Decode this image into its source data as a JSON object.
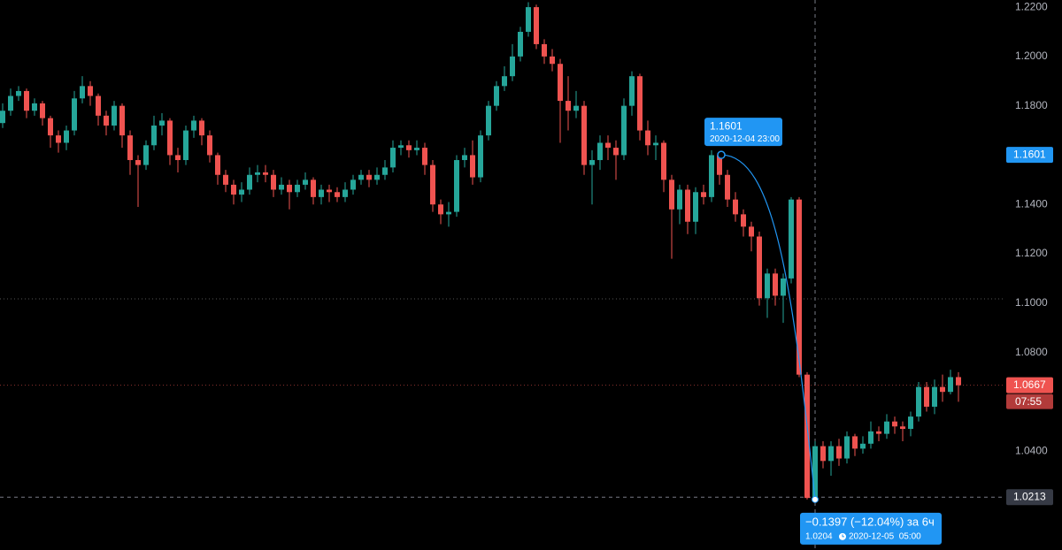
{
  "chart_data": {
    "type": "candlestick",
    "up_color": "#26a69a",
    "down_color": "#ef5350",
    "ohlc": [
      [
        1.173,
        1.181,
        1.171,
        1.178
      ],
      [
        1.178,
        1.187,
        1.176,
        1.184
      ],
      [
        1.184,
        1.188,
        1.182,
        1.186
      ],
      [
        1.186,
        1.187,
        1.175,
        1.178
      ],
      [
        1.178,
        1.183,
        1.176,
        1.181
      ],
      [
        1.181,
        1.182,
        1.172,
        1.175
      ],
      [
        1.175,
        1.176,
        1.163,
        1.168
      ],
      [
        1.168,
        1.17,
        1.161,
        1.165
      ],
      [
        1.165,
        1.172,
        1.162,
        1.17
      ],
      [
        1.17,
        1.186,
        1.168,
        1.183
      ],
      [
        1.183,
        1.192,
        1.181,
        1.188
      ],
      [
        1.188,
        1.19,
        1.18,
        1.184
      ],
      [
        1.184,
        1.185,
        1.172,
        1.176
      ],
      [
        1.176,
        1.178,
        1.168,
        1.172
      ],
      [
        1.172,
        1.182,
        1.17,
        1.18
      ],
      [
        1.18,
        1.181,
        1.163,
        1.168
      ],
      [
        1.168,
        1.17,
        1.152,
        1.158
      ],
      [
        1.158,
        1.16,
        1.139,
        1.156
      ],
      [
        1.156,
        1.166,
        1.154,
        1.164
      ],
      [
        1.164,
        1.176,
        1.162,
        1.172
      ],
      [
        1.172,
        1.177,
        1.168,
        1.174
      ],
      [
        1.174,
        1.175,
        1.156,
        1.16
      ],
      [
        1.16,
        1.163,
        1.153,
        1.158
      ],
      [
        1.158,
        1.172,
        1.156,
        1.17
      ],
      [
        1.17,
        1.176,
        1.167,
        1.174
      ],
      [
        1.174,
        1.175,
        1.164,
        1.168
      ],
      [
        1.168,
        1.17,
        1.157,
        1.16
      ],
      [
        1.16,
        1.161,
        1.148,
        1.152
      ],
      [
        1.152,
        1.154,
        1.145,
        1.148
      ],
      [
        1.148,
        1.15,
        1.14,
        1.144
      ],
      [
        1.144,
        1.149,
        1.141,
        1.146
      ],
      [
        1.146,
        1.155,
        1.144,
        1.152
      ],
      [
        1.152,
        1.156,
        1.149,
        1.153
      ],
      [
        1.153,
        1.156,
        1.149,
        1.152
      ],
      [
        1.152,
        1.154,
        1.143,
        1.146
      ],
      [
        1.146,
        1.151,
        1.144,
        1.148
      ],
      [
        1.148,
        1.15,
        1.138,
        1.145
      ],
      [
        1.145,
        1.15,
        1.143,
        1.148
      ],
      [
        1.148,
        1.153,
        1.146,
        1.15
      ],
      [
        1.15,
        1.151,
        1.14,
        1.143
      ],
      [
        1.143,
        1.148,
        1.14,
        1.146
      ],
      [
        1.146,
        1.148,
        1.141,
        1.145
      ],
      [
        1.145,
        1.147,
        1.141,
        1.143
      ],
      [
        1.143,
        1.149,
        1.141,
        1.146
      ],
      [
        1.146,
        1.152,
        1.144,
        1.15
      ],
      [
        1.15,
        1.154,
        1.148,
        1.152
      ],
      [
        1.152,
        1.154,
        1.147,
        1.15
      ],
      [
        1.15,
        1.155,
        1.148,
        1.152
      ],
      [
        1.152,
        1.158,
        1.15,
        1.155
      ],
      [
        1.155,
        1.166,
        1.153,
        1.163
      ],
      [
        1.163,
        1.166,
        1.16,
        1.164
      ],
      [
        1.164,
        1.166,
        1.159,
        1.162
      ],
      [
        1.162,
        1.166,
        1.16,
        1.163
      ],
      [
        1.163,
        1.165,
        1.152,
        1.156
      ],
      [
        1.156,
        1.158,
        1.137,
        1.14
      ],
      [
        1.14,
        1.142,
        1.132,
        1.136
      ],
      [
        1.136,
        1.141,
        1.131,
        1.137
      ],
      [
        1.137,
        1.16,
        1.135,
        1.158
      ],
      [
        1.158,
        1.163,
        1.155,
        1.16
      ],
      [
        1.16,
        1.166,
        1.148,
        1.151
      ],
      [
        1.151,
        1.17,
        1.149,
        1.168
      ],
      [
        1.168,
        1.182,
        1.166,
        1.18
      ],
      [
        1.18,
        1.19,
        1.178,
        1.188
      ],
      [
        1.188,
        1.196,
        1.186,
        1.192
      ],
      [
        1.192,
        1.205,
        1.19,
        1.2
      ],
      [
        1.2,
        1.212,
        1.198,
        1.21
      ],
      [
        1.21,
        1.222,
        1.208,
        1.22
      ],
      [
        1.22,
        1.221,
        1.203,
        1.205
      ],
      [
        1.205,
        1.207,
        1.197,
        1.2
      ],
      [
        1.2,
        1.203,
        1.194,
        1.197
      ],
      [
        1.197,
        1.199,
        1.165,
        1.182
      ],
      [
        1.182,
        1.192,
        1.17,
        1.178
      ],
      [
        1.178,
        1.186,
        1.175,
        1.18
      ],
      [
        1.18,
        1.182,
        1.152,
        1.156
      ],
      [
        1.156,
        1.162,
        1.14,
        1.158
      ],
      [
        1.158,
        1.168,
        1.154,
        1.165
      ],
      [
        1.165,
        1.168,
        1.158,
        1.163
      ],
      [
        1.163,
        1.166,
        1.15,
        1.16
      ],
      [
        1.16,
        1.183,
        1.158,
        1.18
      ],
      [
        1.18,
        1.194,
        1.176,
        1.192
      ],
      [
        1.192,
        1.193,
        1.166,
        1.17
      ],
      [
        1.17,
        1.174,
        1.16,
        1.164
      ],
      [
        1.164,
        1.168,
        1.158,
        1.165
      ],
      [
        1.165,
        1.166,
        1.145,
        1.15
      ],
      [
        1.15,
        1.152,
        1.118,
        1.138
      ],
      [
        1.138,
        1.148,
        1.132,
        1.146
      ],
      [
        1.146,
        1.148,
        1.128,
        1.133
      ],
      [
        1.133,
        1.147,
        1.128,
        1.145
      ],
      [
        1.145,
        1.148,
        1.14,
        1.143
      ],
      [
        1.143,
        1.162,
        1.141,
        1.16
      ],
      [
        1.16,
        1.161,
        1.148,
        1.152
      ],
      [
        1.152,
        1.154,
        1.139,
        1.142
      ],
      [
        1.142,
        1.145,
        1.133,
        1.136
      ],
      [
        1.136,
        1.138,
        1.127,
        1.131
      ],
      [
        1.131,
        1.133,
        1.121,
        1.127
      ],
      [
        1.127,
        1.129,
        1.099,
        1.102
      ],
      [
        1.102,
        1.114,
        1.094,
        1.112
      ],
      [
        1.112,
        1.114,
        1.099,
        1.103
      ],
      [
        1.103,
        1.112,
        1.092,
        1.11
      ],
      [
        1.11,
        1.143,
        1.108,
        1.142
      ],
      [
        1.142,
        1.143,
        1.07,
        1.071
      ],
      [
        1.071,
        1.072,
        1.0204,
        1.021
      ],
      [
        1.021,
        1.044,
        1.0204,
        1.042
      ],
      [
        1.042,
        1.044,
        1.033,
        1.036
      ],
      [
        1.036,
        1.044,
        1.03,
        1.042
      ],
      [
        1.042,
        1.045,
        1.034,
        1.037
      ],
      [
        1.037,
        1.048,
        1.035,
        1.046
      ],
      [
        1.046,
        1.047,
        1.038,
        1.041
      ],
      [
        1.041,
        1.046,
        1.039,
        1.043
      ],
      [
        1.043,
        1.052,
        1.041,
        1.048
      ],
      [
        1.048,
        1.05,
        1.044,
        1.047
      ],
      [
        1.047,
        1.055,
        1.045,
        1.052
      ],
      [
        1.052,
        1.054,
        1.047,
        1.05
      ],
      [
        1.05,
        1.052,
        1.044,
        1.049
      ],
      [
        1.049,
        1.056,
        1.046,
        1.054
      ],
      [
        1.054,
        1.068,
        1.052,
        1.066
      ],
      [
        1.066,
        1.068,
        1.056,
        1.058
      ],
      [
        1.058,
        1.069,
        1.055,
        1.066
      ],
      [
        1.066,
        1.071,
        1.06,
        1.064
      ],
      [
        1.064,
        1.073,
        1.063,
        1.07
      ],
      [
        1.07,
        1.072,
        1.06,
        1.0667
      ]
    ],
    "ylim": [
      0.9999,
      1.2229
    ],
    "yticks": [
      {
        "value": 1.04,
        "label": "1.0400"
      },
      {
        "value": 1.08,
        "label": "1.0800"
      },
      {
        "value": 1.1,
        "label": "1.1000"
      },
      {
        "value": 1.12,
        "label": "1.1200"
      },
      {
        "value": 1.14,
        "label": "1.1400"
      },
      {
        "value": 1.18,
        "label": "1.1800"
      },
      {
        "value": 1.2,
        "label": "1.2000"
      },
      {
        "value": 1.22,
        "label": "1.2200"
      }
    ],
    "level": 1.1017,
    "last_price": 1.0667,
    "countdown": "07:55",
    "crosshair_price": 1.0213,
    "measure": {
      "start_price": 1.1601,
      "start_time": "2020-12-04 23:00",
      "end_price": 1.0204,
      "end_time": "2020-12-05  05:00",
      "change": "−0.1397 (−12.04%) за 6ч"
    }
  }
}
